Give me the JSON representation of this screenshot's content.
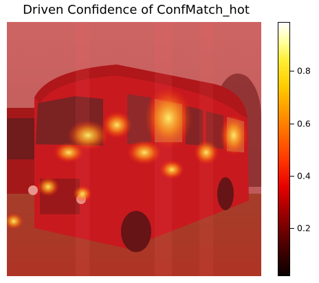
{
  "figure": {
    "title": "Driven Confidence of ConfMatch_hot",
    "image_alt": "Heatmap overlay of confidence on a photo of a vintage red bus parked on grass",
    "colormap": "hot",
    "accent_colors": {
      "bus_red": "#c0121a",
      "overlay_red": "#d7282a",
      "sky_tint": "#c98a88"
    }
  },
  "colorbar": {
    "ticks": [
      {
        "value": 0.2,
        "label": "0.2"
      },
      {
        "value": 0.4,
        "label": "0.4"
      },
      {
        "value": 0.6,
        "label": "0.6"
      },
      {
        "value": 0.8,
        "label": "0.8"
      }
    ],
    "range": [
      0.0,
      1.0
    ]
  }
}
